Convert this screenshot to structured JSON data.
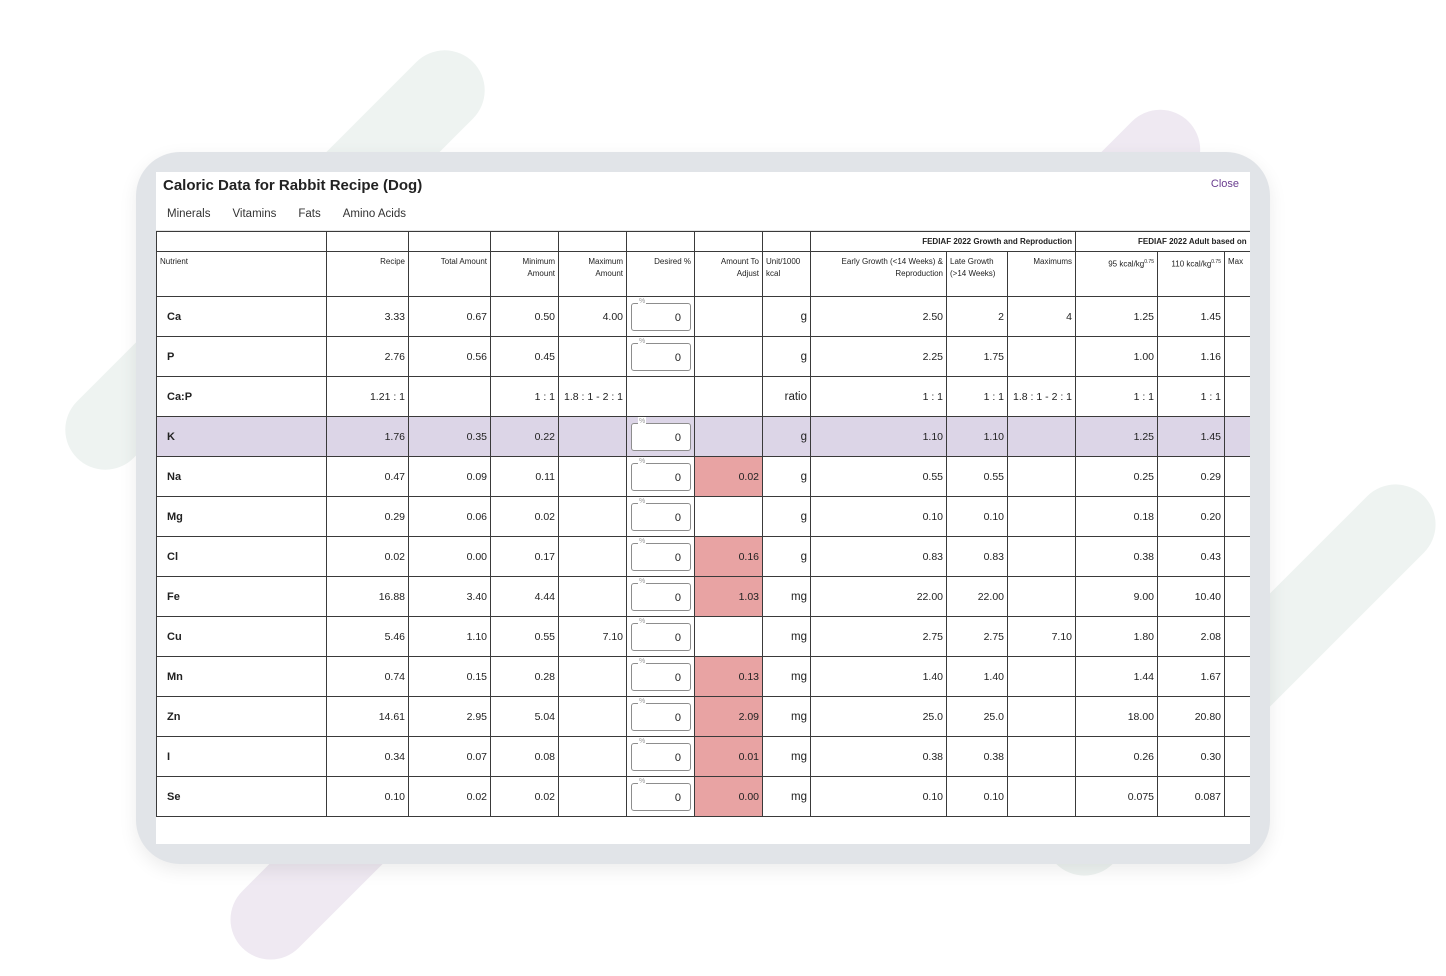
{
  "dialog": {
    "title": "Caloric Data for Rabbit Recipe (Dog)",
    "close_label": "Close"
  },
  "tabs": [
    "Minerals",
    "Vitamins",
    "Fats",
    "Amino Acids"
  ],
  "active_tab": "Minerals",
  "groups": {
    "growth": "FEDIAF 2022 Growth and Reproduction",
    "adult": "FEDIAF 2022 Adult based on"
  },
  "columns": {
    "nutrient": "Nutrient",
    "recipe": "Recipe",
    "total_amount": "Total Amount",
    "minimum_amount": "Minimum Amount",
    "maximum_amount": "Maximum Amount",
    "desired_pct": "Desired %",
    "amount_to_adjust": "Amount To Adjust",
    "unit": "Unit/1000 kcal",
    "early_growth": "Early Growth (<14 Weeks) & Reproduction",
    "late_growth": "Late Growth (>14 Weeks)",
    "maximums": "Maximums",
    "adult_95": "95 kcal/kg",
    "adult_110": "110 kcal/kg",
    "adult_max": "Max",
    "exponent": "0.75"
  },
  "pct_legend": "%",
  "rows": [
    {
      "nutrient": "Ca",
      "recipe": "3.33",
      "total": "0.67",
      "min": "0.50",
      "max": "4.00",
      "desired": "0",
      "adjust": "",
      "unit": "g",
      "early": "2.50",
      "late": "2",
      "maximums": "4",
      "a95": "1.25",
      "a110": "1.45",
      "highlight": false,
      "has_pct": true
    },
    {
      "nutrient": "P",
      "recipe": "2.76",
      "total": "0.56",
      "min": "0.45",
      "max": "",
      "desired": "0",
      "adjust": "",
      "unit": "g",
      "early": "2.25",
      "late": "1.75",
      "maximums": "",
      "a95": "1.00",
      "a110": "1.16",
      "highlight": false,
      "has_pct": true
    },
    {
      "nutrient": "Ca:P",
      "recipe": "1.21 : 1",
      "total": "",
      "min": "1 : 1",
      "max": "1.8 : 1 - 2 : 1",
      "desired": "",
      "adjust": "",
      "unit": "ratio",
      "early": "1 : 1",
      "late": "1 : 1",
      "maximums": "1.8 : 1 - 2 : 1",
      "a95": "1 : 1",
      "a110": "1 : 1",
      "highlight": false,
      "has_pct": false
    },
    {
      "nutrient": "K",
      "recipe": "1.76",
      "total": "0.35",
      "min": "0.22",
      "max": "",
      "desired": "0",
      "adjust": "",
      "unit": "g",
      "early": "1.10",
      "late": "1.10",
      "maximums": "",
      "a95": "1.25",
      "a110": "1.45",
      "highlight": true,
      "has_pct": true
    },
    {
      "nutrient": "Na",
      "recipe": "0.47",
      "total": "0.09",
      "min": "0.11",
      "max": "",
      "desired": "0",
      "adjust": "0.02",
      "unit": "g",
      "early": "0.55",
      "late": "0.55",
      "maximums": "",
      "a95": "0.25",
      "a110": "0.29",
      "highlight": false,
      "has_pct": true
    },
    {
      "nutrient": "Mg",
      "recipe": "0.29",
      "total": "0.06",
      "min": "0.02",
      "max": "",
      "desired": "0",
      "adjust": "",
      "unit": "g",
      "early": "0.10",
      "late": "0.10",
      "maximums": "",
      "a95": "0.18",
      "a110": "0.20",
      "highlight": false,
      "has_pct": true
    },
    {
      "nutrient": "Cl",
      "recipe": "0.02",
      "total": "0.00",
      "min": "0.17",
      "max": "",
      "desired": "0",
      "adjust": "0.16",
      "unit": "g",
      "early": "0.83",
      "late": "0.83",
      "maximums": "",
      "a95": "0.38",
      "a110": "0.43",
      "highlight": false,
      "has_pct": true
    },
    {
      "nutrient": "Fe",
      "recipe": "16.88",
      "total": "3.40",
      "min": "4.44",
      "max": "",
      "desired": "0",
      "adjust": "1.03",
      "unit": "mg",
      "early": "22.00",
      "late": "22.00",
      "maximums": "",
      "a95": "9.00",
      "a110": "10.40",
      "highlight": false,
      "has_pct": true
    },
    {
      "nutrient": "Cu",
      "recipe": "5.46",
      "total": "1.10",
      "min": "0.55",
      "max": "7.10",
      "desired": "0",
      "adjust": "",
      "unit": "mg",
      "early": "2.75",
      "late": "2.75",
      "maximums": "7.10",
      "a95": "1.80",
      "a110": "2.08",
      "highlight": false,
      "has_pct": true
    },
    {
      "nutrient": "Mn",
      "recipe": "0.74",
      "total": "0.15",
      "min": "0.28",
      "max": "",
      "desired": "0",
      "adjust": "0.13",
      "unit": "mg",
      "early": "1.40",
      "late": "1.40",
      "maximums": "",
      "a95": "1.44",
      "a110": "1.67",
      "highlight": false,
      "has_pct": true
    },
    {
      "nutrient": "Zn",
      "recipe": "14.61",
      "total": "2.95",
      "min": "5.04",
      "max": "",
      "desired": "0",
      "adjust": "2.09",
      "unit": "mg",
      "early": "25.0",
      "late": "25.0",
      "maximums": "",
      "a95": "18.00",
      "a110": "20.80",
      "highlight": false,
      "has_pct": true
    },
    {
      "nutrient": "I",
      "recipe": "0.34",
      "total": "0.07",
      "min": "0.08",
      "max": "",
      "desired": "0",
      "adjust": "0.01",
      "unit": "mg",
      "early": "0.38",
      "late": "0.38",
      "maximums": "",
      "a95": "0.26",
      "a110": "0.30",
      "highlight": false,
      "has_pct": true
    },
    {
      "nutrient": "Se",
      "recipe": "0.10",
      "total": "0.02",
      "min": "0.02",
      "max": "",
      "desired": "0",
      "adjust": "0.00",
      "unit": "mg",
      "early": "0.10",
      "late": "0.10",
      "maximums": "",
      "a95": "0.075",
      "a110": "0.087",
      "highlight": false,
      "has_pct": true
    }
  ],
  "colors": {
    "accent": "#6a3d8f",
    "highlight_row": "#dcd5e7",
    "adjust_cell": "#e8a3a3",
    "tablet_frame": "#e1e4e8"
  }
}
